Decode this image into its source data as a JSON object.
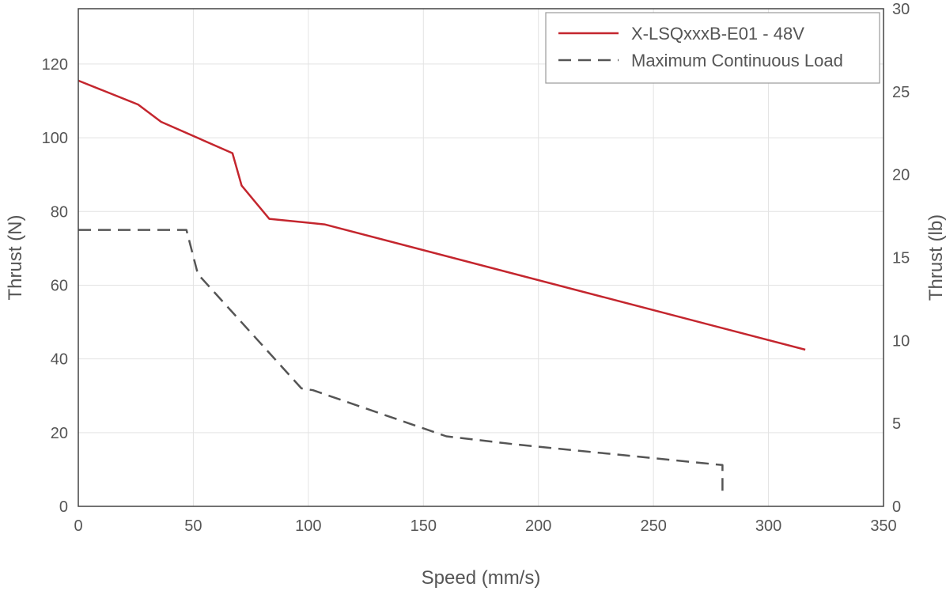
{
  "chart_data": {
    "type": "line",
    "title": "",
    "xlabel": "Speed (mm/s)",
    "ylabel": "Thrust (N)",
    "ylabel_right": "Thrust (lb)",
    "xlim": [
      0,
      350
    ],
    "ylim": [
      0,
      135
    ],
    "ylim_right": [
      0,
      30
    ],
    "x_ticks": [
      0,
      50,
      100,
      150,
      200,
      250,
      300,
      350
    ],
    "y_ticks": [
      0,
      20,
      40,
      60,
      80,
      100,
      120
    ],
    "y_ticks_right": [
      0,
      5,
      10,
      15,
      20,
      25,
      30
    ],
    "grid": true,
    "legend_position": "top-right",
    "colors": {
      "grid": "#e3e3e3",
      "axis": "#444444",
      "text": "#555555"
    },
    "series": [
      {
        "name": "X-LSQxxxB-E01 - 48V",
        "style": "solid",
        "color": "#c4262e",
        "points": [
          [
            0,
            115.5
          ],
          [
            26,
            109
          ],
          [
            36,
            104.3
          ],
          [
            67,
            95.8
          ],
          [
            71,
            87
          ],
          [
            83,
            78
          ],
          [
            107,
            76.5
          ],
          [
            316,
            42.5
          ]
        ]
      },
      {
        "name": "Maximum Continuous Load",
        "style": "dashed",
        "color": "#555555",
        "points": [
          [
            0,
            75
          ],
          [
            47,
            75
          ],
          [
            52,
            63
          ],
          [
            97,
            32
          ],
          [
            102,
            31.5
          ],
          [
            160,
            19
          ],
          [
            190,
            16.8
          ],
          [
            280,
            11.2
          ],
          [
            280,
            3.5
          ]
        ]
      }
    ]
  }
}
